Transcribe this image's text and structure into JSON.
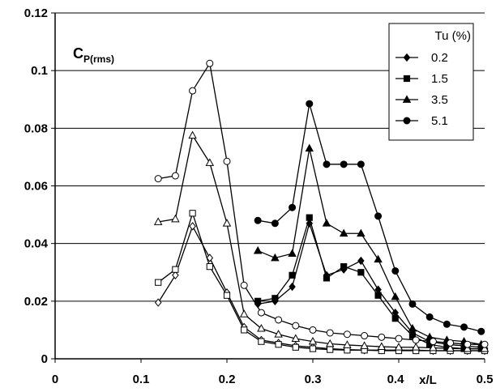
{
  "chart_data": {
    "type": "line",
    "ylabel_main": "C",
    "ylabel_sub": "P(rms)",
    "xlabel": "x/L",
    "xlim": [
      0,
      0.5
    ],
    "ylim": [
      0,
      0.12
    ],
    "x_ticks": [
      "0",
      "0.1",
      "0.2",
      "0.3",
      "0.4",
      "0.5"
    ],
    "y_ticks": [
      "0",
      "0.02",
      "0.04",
      "0.06",
      "0.08",
      "0.1",
      "0.12"
    ],
    "grid": true,
    "legend_position": "top-right",
    "legend_title": "Tu (%)",
    "series": [
      {
        "name": "0.2",
        "marker": "diamond",
        "open": {
          "x": [
            0.12,
            0.14,
            0.16,
            0.18,
            0.2,
            0.22,
            0.24,
            0.26,
            0.28,
            0.3,
            0.32,
            0.34,
            0.36,
            0.38,
            0.4,
            0.42,
            0.44,
            0.46,
            0.48,
            0.5
          ],
          "y": [
            0.0195,
            0.029,
            0.046,
            0.035,
            0.023,
            0.011,
            0.0065,
            0.0055,
            0.0045,
            0.004,
            0.0035,
            0.0032,
            0.003,
            0.003,
            0.003,
            0.003,
            0.0028,
            0.0028,
            0.0028,
            0.0028
          ]
        },
        "solid": {
          "x": [
            0.236,
            0.256,
            0.276,
            0.296,
            0.316,
            0.336,
            0.356,
            0.376,
            0.396,
            0.416,
            0.436,
            0.456,
            0.476,
            0.496
          ],
          "y": [
            0.019,
            0.02,
            0.025,
            0.047,
            0.029,
            0.031,
            0.034,
            0.024,
            0.016,
            0.009,
            0.006,
            0.005,
            0.0045,
            0.004
          ]
        }
      },
      {
        "name": "1.5",
        "marker": "square",
        "open": {
          "x": [
            0.12,
            0.14,
            0.16,
            0.18,
            0.2,
            0.22,
            0.24,
            0.26,
            0.28,
            0.3,
            0.32,
            0.34,
            0.36,
            0.38,
            0.4,
            0.42,
            0.44,
            0.46,
            0.48,
            0.5
          ],
          "y": [
            0.0265,
            0.031,
            0.0505,
            0.032,
            0.022,
            0.01,
            0.006,
            0.005,
            0.004,
            0.0035,
            0.0032,
            0.003,
            0.003,
            0.0028,
            0.0028,
            0.0028,
            0.0028,
            0.0028,
            0.0028,
            0.0028
          ]
        },
        "solid": {
          "x": [
            0.236,
            0.256,
            0.276,
            0.296,
            0.316,
            0.336,
            0.356,
            0.376,
            0.396,
            0.416,
            0.436,
            0.456,
            0.476,
            0.496
          ],
          "y": [
            0.02,
            0.021,
            0.029,
            0.049,
            0.028,
            0.032,
            0.03,
            0.022,
            0.014,
            0.008,
            0.005,
            0.004,
            0.0035,
            0.0035
          ]
        }
      },
      {
        "name": "3.5",
        "marker": "triangle",
        "open": {
          "x": [
            0.12,
            0.14,
            0.16,
            0.18,
            0.2,
            0.22,
            0.24,
            0.26,
            0.28,
            0.3,
            0.32,
            0.34,
            0.36,
            0.38,
            0.4,
            0.42,
            0.44,
            0.46,
            0.48,
            0.5
          ],
          "y": [
            0.0475,
            0.0485,
            0.0775,
            0.068,
            0.047,
            0.0155,
            0.0105,
            0.0085,
            0.007,
            0.006,
            0.0052,
            0.0048,
            0.0045,
            0.0042,
            0.004,
            0.004,
            0.0038,
            0.0036,
            0.0035,
            0.0035
          ]
        },
        "solid": {
          "x": [
            0.236,
            0.256,
            0.276,
            0.296,
            0.316,
            0.336,
            0.356,
            0.376,
            0.396,
            0.416,
            0.436,
            0.456,
            0.476,
            0.496
          ],
          "y": [
            0.0375,
            0.035,
            0.0365,
            0.073,
            0.047,
            0.0435,
            0.0435,
            0.0345,
            0.0215,
            0.0105,
            0.0075,
            0.0065,
            0.006,
            0.005
          ]
        }
      },
      {
        "name": "5.1",
        "marker": "circle",
        "open": {
          "x": [
            0.12,
            0.14,
            0.16,
            0.18,
            0.2,
            0.22,
            0.24,
            0.26,
            0.28,
            0.3,
            0.32,
            0.34,
            0.36,
            0.38,
            0.4,
            0.42,
            0.44,
            0.46,
            0.48,
            0.5
          ],
          "y": [
            0.0625,
            0.0635,
            0.093,
            0.1025,
            0.0685,
            0.0255,
            0.016,
            0.0135,
            0.0115,
            0.01,
            0.009,
            0.0085,
            0.008,
            0.0075,
            0.007,
            0.0065,
            0.006,
            0.0055,
            0.005,
            0.005
          ]
        },
        "solid": {
          "x": [
            0.236,
            0.256,
            0.276,
            0.296,
            0.316,
            0.336,
            0.356,
            0.376,
            0.396,
            0.416,
            0.436,
            0.456,
            0.476,
            0.496
          ],
          "y": [
            0.048,
            0.047,
            0.0525,
            0.0885,
            0.0675,
            0.0675,
            0.0675,
            0.0495,
            0.0305,
            0.019,
            0.0145,
            0.012,
            0.011,
            0.0095
          ]
        }
      }
    ]
  }
}
